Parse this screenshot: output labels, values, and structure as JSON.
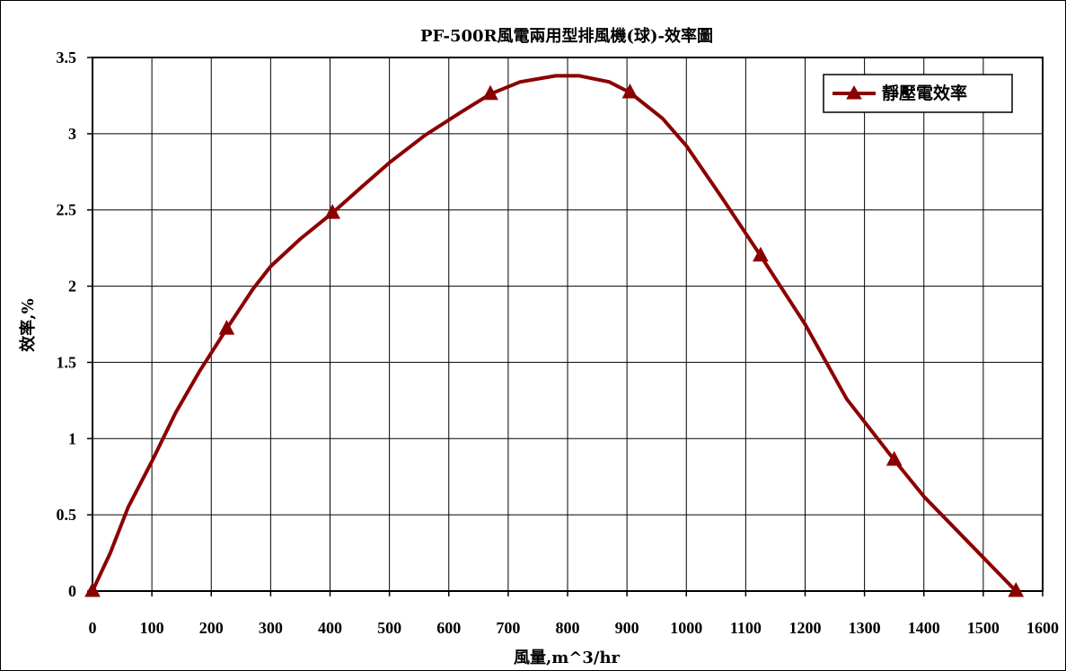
{
  "chart_data": {
    "type": "line",
    "title": "PF-500R風電兩用型排風機(球)-效率圖",
    "xlabel": "風量,m^3/hr",
    "ylabel": "效率,%",
    "xlim": [
      0,
      1600
    ],
    "ylim": [
      0,
      3.5
    ],
    "xticks": [
      "0",
      "100",
      "200",
      "300",
      "400",
      "500",
      "600",
      "700",
      "800",
      "900",
      "1000",
      "1100",
      "1200",
      "1300",
      "1400",
      "1500",
      "1600"
    ],
    "yticks": [
      "0",
      "0.5",
      "1",
      "1.5",
      "2",
      "2.5",
      "3",
      "3.5"
    ],
    "grid": true,
    "legend_position": "top-right",
    "colors": {
      "series": "#8b0000",
      "grid": "#000000"
    },
    "series": [
      {
        "name": "靜壓電效率",
        "marker": "triangle",
        "curve": [
          [
            0,
            0
          ],
          [
            30,
            0.25
          ],
          [
            60,
            0.55
          ],
          [
            100,
            0.85
          ],
          [
            140,
            1.17
          ],
          [
            180,
            1.44
          ],
          [
            226,
            1.72
          ],
          [
            270,
            1.98
          ],
          [
            300,
            2.13
          ],
          [
            350,
            2.31
          ],
          [
            404,
            2.48
          ],
          [
            450,
            2.64
          ],
          [
            500,
            2.81
          ],
          [
            560,
            2.99
          ],
          [
            620,
            3.14
          ],
          [
            670,
            3.26
          ],
          [
            720,
            3.34
          ],
          [
            780,
            3.38
          ],
          [
            820,
            3.38
          ],
          [
            870,
            3.34
          ],
          [
            905,
            3.27
          ],
          [
            960,
            3.1
          ],
          [
            1000,
            2.92
          ],
          [
            1060,
            2.58
          ],
          [
            1125,
            2.2
          ],
          [
            1200,
            1.75
          ],
          [
            1270,
            1.26
          ],
          [
            1350,
            0.86
          ],
          [
            1400,
            0.62
          ],
          [
            1450,
            0.42
          ],
          [
            1500,
            0.22
          ],
          [
            1530,
            0.1
          ],
          [
            1555,
            0
          ]
        ],
        "markers": [
          [
            0,
            0
          ],
          [
            226,
            1.72
          ],
          [
            404,
            2.48
          ],
          [
            670,
            3.26
          ],
          [
            905,
            3.27
          ],
          [
            1125,
            2.2
          ],
          [
            1350,
            0.86
          ],
          [
            1555,
            0
          ]
        ]
      }
    ]
  }
}
